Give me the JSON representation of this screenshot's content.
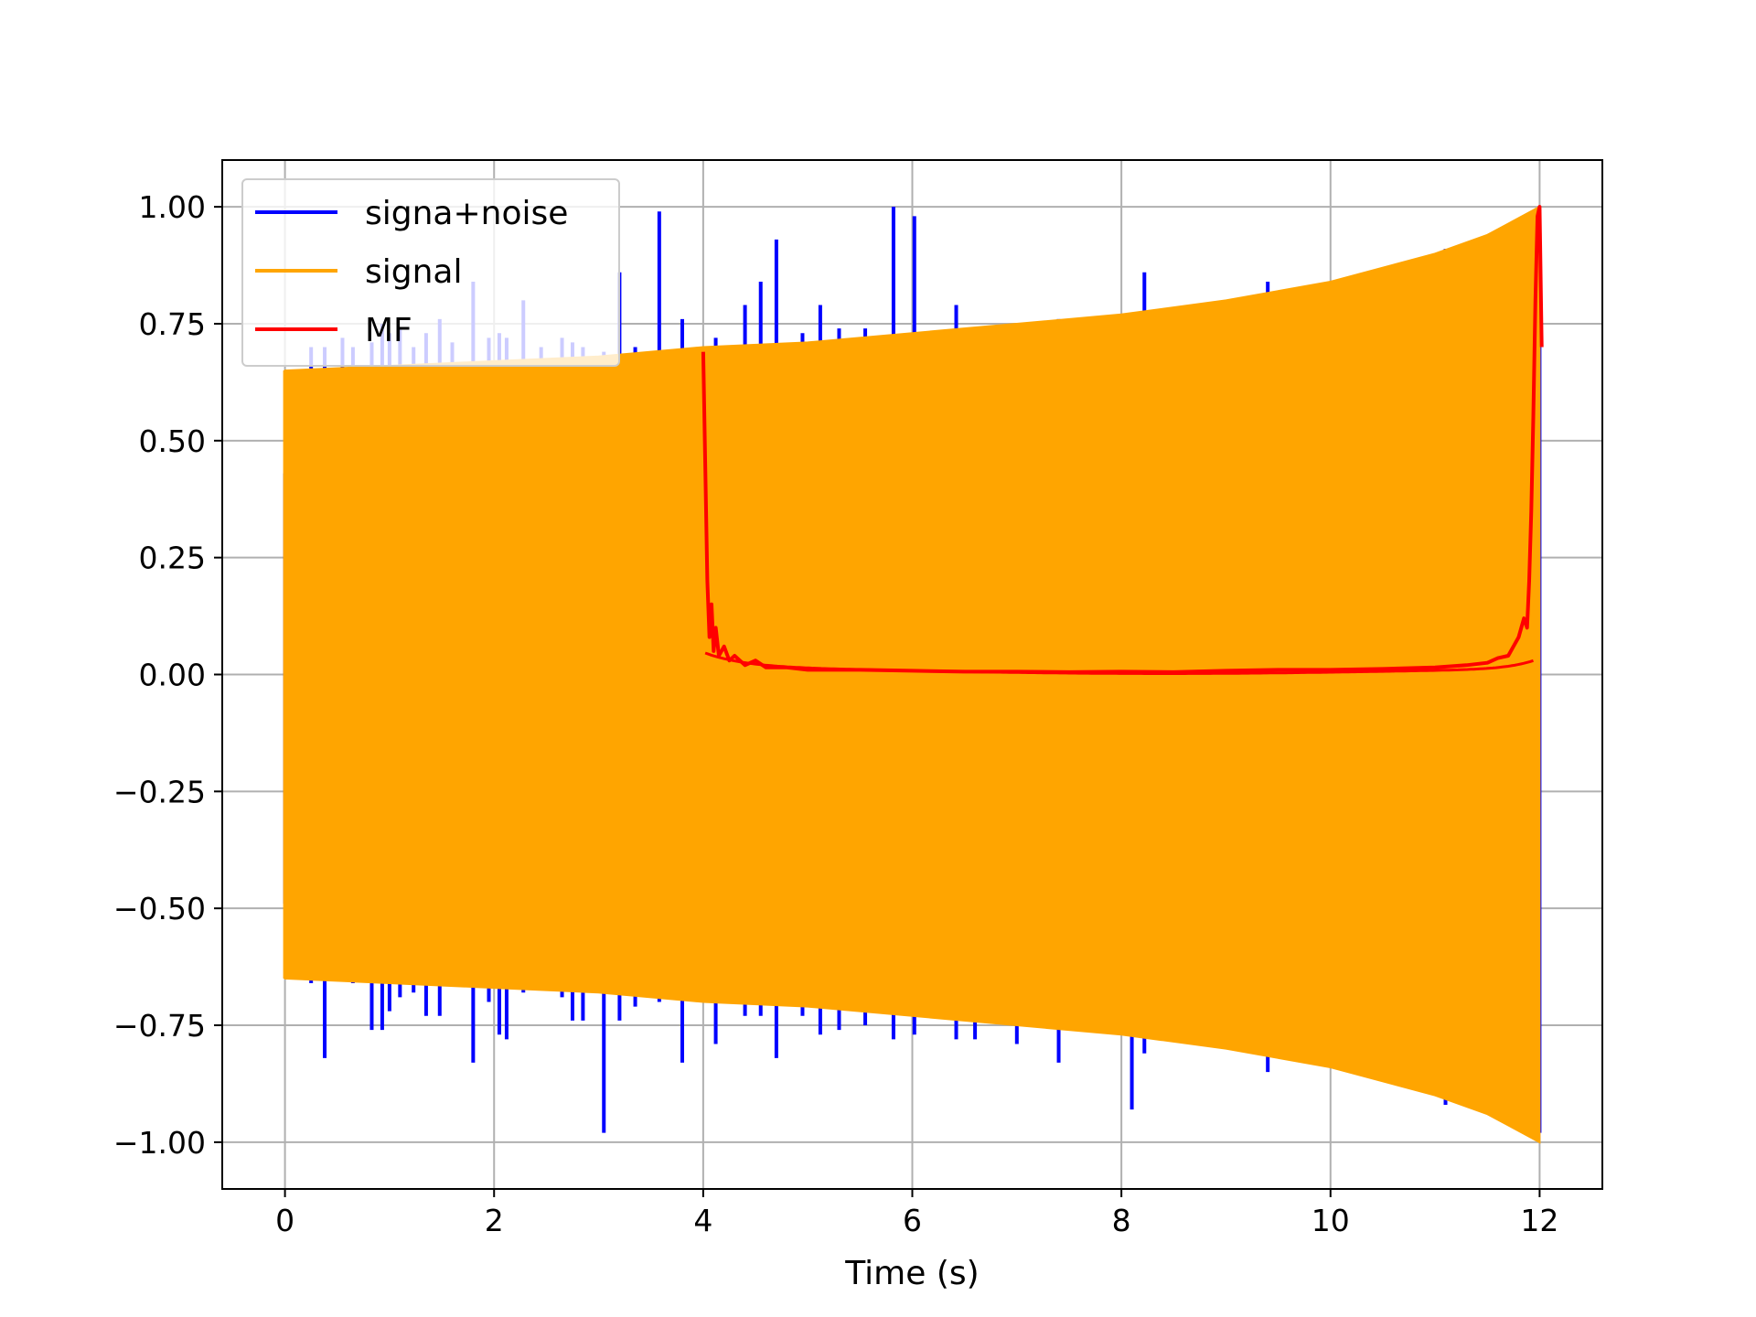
{
  "chart_data": {
    "type": "line",
    "title": "",
    "xlabel": "Time (s)",
    "ylabel": "",
    "xlim": [
      -0.6,
      12.6
    ],
    "ylim": [
      -1.1,
      1.1
    ],
    "grid": true,
    "legend_position": "top-left",
    "x_ticks": [
      0,
      2,
      4,
      6,
      8,
      10,
      12
    ],
    "x_tick_labels": [
      "0",
      "2",
      "4",
      "6",
      "8",
      "10",
      "12"
    ],
    "y_ticks": [
      1.0,
      0.75,
      0.5,
      0.25,
      0.0,
      -0.25,
      -0.5,
      -0.75,
      -1.0
    ],
    "y_tick_labels": [
      "1.00",
      "0.75",
      "0.50",
      "0.25",
      "0.00",
      "−0.25",
      "−0.50",
      "−0.75",
      "−1.00"
    ],
    "series": [
      {
        "name": "signa+noise",
        "color": "#0000ff",
        "render": "spikes",
        "spikes": [
          [
            0.0,
            0.43,
            -0.49
          ],
          [
            0.15,
            0.65,
            -0.62
          ],
          [
            0.25,
            0.7,
            -0.66
          ],
          [
            0.38,
            0.7,
            -0.82
          ],
          [
            0.55,
            0.72,
            -0.65
          ],
          [
            0.65,
            0.7,
            -0.66
          ],
          [
            0.83,
            0.71,
            -0.76
          ],
          [
            0.93,
            0.75,
            -0.76
          ],
          [
            1.0,
            0.73,
            -0.72
          ],
          [
            1.1,
            0.74,
            -0.69
          ],
          [
            1.23,
            0.7,
            -0.68
          ],
          [
            1.35,
            0.73,
            -0.73
          ],
          [
            1.48,
            0.76,
            -0.73
          ],
          [
            1.6,
            0.71,
            -0.66
          ],
          [
            1.8,
            0.84,
            -0.83
          ],
          [
            1.95,
            0.72,
            -0.7
          ],
          [
            2.05,
            0.73,
            -0.77
          ],
          [
            2.12,
            0.72,
            -0.78
          ],
          [
            2.28,
            0.8,
            -0.68
          ],
          [
            2.45,
            0.7,
            -0.67
          ],
          [
            2.65,
            0.72,
            -0.69
          ],
          [
            2.75,
            0.71,
            -0.74
          ],
          [
            2.85,
            0.7,
            -0.74
          ],
          [
            3.05,
            0.69,
            -0.98
          ],
          [
            3.2,
            0.86,
            -0.74
          ],
          [
            3.35,
            0.7,
            -0.71
          ],
          [
            3.58,
            0.99,
            -0.7
          ],
          [
            3.8,
            0.76,
            -0.83
          ],
          [
            4.12,
            0.72,
            -0.79
          ],
          [
            4.4,
            0.79,
            -0.73
          ],
          [
            4.55,
            0.84,
            -0.73
          ],
          [
            4.7,
            0.93,
            -0.82
          ],
          [
            4.95,
            0.73,
            -0.73
          ],
          [
            5.12,
            0.79,
            -0.77
          ],
          [
            5.3,
            0.74,
            -0.76
          ],
          [
            5.55,
            0.74,
            -0.75
          ],
          [
            5.82,
            1.0,
            -0.78
          ],
          [
            6.02,
            0.98,
            -0.77
          ],
          [
            6.42,
            0.79,
            -0.78
          ],
          [
            6.6,
            0.73,
            -0.78
          ],
          [
            7.0,
            0.75,
            -0.79
          ],
          [
            7.4,
            0.76,
            -0.83
          ],
          [
            8.1,
            0.77,
            -0.93
          ],
          [
            8.22,
            0.86,
            -0.81
          ],
          [
            9.4,
            0.84,
            -0.85
          ],
          [
            11.1,
            0.91,
            -0.92
          ],
          [
            12.0,
            0.97,
            -0.98
          ]
        ]
      },
      {
        "name": "signal",
        "color": "#ffa500",
        "render": "envelope",
        "x": [
          0,
          1,
          2,
          3,
          4,
          5,
          6,
          7,
          8,
          9,
          10,
          11,
          11.5,
          12
        ],
        "upper": [
          0.65,
          0.66,
          0.67,
          0.68,
          0.7,
          0.71,
          0.73,
          0.75,
          0.77,
          0.8,
          0.84,
          0.9,
          0.94,
          1.0
        ],
        "lower": [
          -0.65,
          -0.66,
          -0.67,
          -0.68,
          -0.7,
          -0.71,
          -0.73,
          -0.75,
          -0.77,
          -0.8,
          -0.84,
          -0.9,
          -0.94,
          -1.0
        ]
      },
      {
        "name": "MF",
        "color": "#ff0000",
        "render": "line",
        "x": [
          4.0,
          4.02,
          4.04,
          4.06,
          4.08,
          4.1,
          4.12,
          4.15,
          4.2,
          4.25,
          4.3,
          4.4,
          4.5,
          4.6,
          4.8,
          5.0,
          5.5,
          6.0,
          6.5,
          7.0,
          7.5,
          8.0,
          8.5,
          9.0,
          9.5,
          10.0,
          10.5,
          11.0,
          11.3,
          11.5,
          11.6,
          11.7,
          11.75,
          11.8,
          11.85,
          11.88,
          11.9,
          11.92,
          11.94,
          11.96,
          11.98,
          12.0,
          12.02
        ],
        "y": [
          0.69,
          0.45,
          0.2,
          0.08,
          0.15,
          0.05,
          0.1,
          0.04,
          0.06,
          0.03,
          0.04,
          0.02,
          0.03,
          0.015,
          0.015,
          0.01,
          0.01,
          0.008,
          0.006,
          0.006,
          0.005,
          0.006,
          0.005,
          0.008,
          0.01,
          0.01,
          0.012,
          0.015,
          0.02,
          0.025,
          0.035,
          0.04,
          0.06,
          0.08,
          0.12,
          0.1,
          0.2,
          0.35,
          0.55,
          0.8,
          0.98,
          1.0,
          0.7
        ]
      }
    ]
  }
}
